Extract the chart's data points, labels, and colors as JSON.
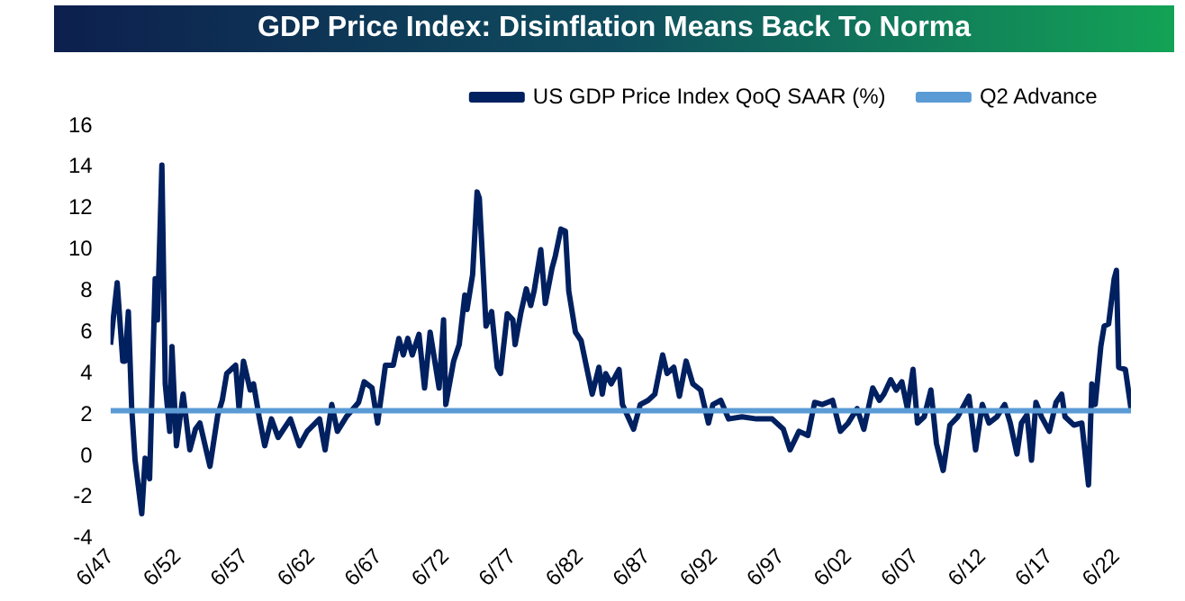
{
  "chart_data": {
    "type": "line",
    "title": "GDP Price Index: Disinflation Means Back To Norma",
    "series": [
      {
        "name": "US GDP Price Index QoQ SAAR (%)",
        "color": "#002060",
        "x": [
          "1947-06",
          "1947-12",
          "1948-05",
          "1948-07",
          "1948-10",
          "1949-01",
          "1949-04",
          "1949-10",
          "1950-01",
          "1950-05",
          "1950-10",
          "1950-12",
          "1951-04",
          "1951-07",
          "1951-11",
          "1952-01",
          "1952-05",
          "1952-11",
          "1953-05",
          "1953-10",
          "1954-02",
          "1954-11",
          "1955-06",
          "1955-10",
          "1956-02",
          "1956-10",
          "1957-01",
          "1957-05",
          "1957-11",
          "1958-02",
          "1958-07",
          "1958-12",
          "1959-06",
          "1959-12",
          "1960-11",
          "1961-07",
          "1962-02",
          "1963-01",
          "1963-06",
          "1963-12",
          "1964-05",
          "1965-01",
          "1965-12",
          "1966-05",
          "1966-12",
          "1967-05",
          "1967-12",
          "1968-07",
          "1968-12",
          "1969-04",
          "1969-08",
          "1969-12",
          "1970-06",
          "1970-11",
          "1971-04",
          "1971-12",
          "1972-04",
          "1972-06",
          "1973-01",
          "1973-06",
          "1973-11",
          "1974-01",
          "1974-06",
          "1974-10",
          "1974-12",
          "1975-06",
          "1975-11",
          "1976-04",
          "1976-07",
          "1977-01",
          "1977-06",
          "1977-08",
          "1978-01",
          "1978-06",
          "1978-10",
          "1979-01",
          "1979-07",
          "1979-11",
          "1980-05",
          "1980-08",
          "1981-01",
          "1981-05",
          "1981-08",
          "1982-02",
          "1982-07",
          "1982-12",
          "1983-05",
          "1983-11",
          "1984-02",
          "1984-05",
          "1984-10",
          "1985-05",
          "1985-08",
          "1986-01",
          "1986-06",
          "1986-12",
          "1987-07",
          "1988-01",
          "1988-08",
          "1988-12",
          "1989-06",
          "1989-11",
          "1990-05",
          "1990-11",
          "1991-06",
          "1992-01",
          "1992-05",
          "1992-12",
          "1993-07",
          "1994-07",
          "1995-08",
          "1996-10",
          "1997-08",
          "1998-02",
          "1998-10",
          "1999-06",
          "1999-12",
          "2000-07",
          "2001-04",
          "2001-11",
          "2002-06",
          "2003-02",
          "2003-08",
          "2004-04",
          "2004-10",
          "2005-02",
          "2005-08",
          "2006-01",
          "2006-06",
          "2006-11",
          "2007-04",
          "2007-08",
          "2008-02",
          "2008-08",
          "2009-01",
          "2009-07",
          "2010-01",
          "2010-08",
          "2011-06",
          "2011-12",
          "2012-06",
          "2012-12",
          "2013-07",
          "2014-02",
          "2014-07",
          "2015-01",
          "2015-05",
          "2015-10",
          "2016-02",
          "2016-06",
          "2016-11",
          "2017-06",
          "2017-12",
          "2018-05",
          "2018-08",
          "2019-04",
          "2019-11",
          "2020-05",
          "2020-08",
          "2020-11",
          "2021-04",
          "2021-07",
          "2021-11",
          "2022-04",
          "2022-06",
          "2022-08",
          "2023-02",
          "2023-07"
        ],
        "values": [
          5.4,
          8.4,
          4.6,
          4.6,
          7.0,
          2.3,
          -0.2,
          -2.8,
          -0.1,
          -1.1,
          8.6,
          6.6,
          14.1,
          3.5,
          1.2,
          5.3,
          0.5,
          3.0,
          0.3,
          1.3,
          1.6,
          -0.5,
          2.0,
          2.7,
          4.0,
          4.4,
          2.3,
          4.6,
          3.2,
          3.5,
          1.9,
          0.5,
          1.8,
          0.9,
          1.8,
          0.5,
          1.2,
          1.8,
          0.3,
          2.5,
          1.2,
          1.9,
          2.6,
          3.6,
          3.3,
          1.6,
          4.4,
          4.4,
          5.7,
          4.9,
          5.7,
          4.9,
          5.9,
          3.3,
          6.0,
          3.3,
          6.6,
          2.5,
          4.6,
          5.4,
          7.8,
          7.1,
          8.8,
          12.8,
          12.5,
          6.3,
          7.0,
          4.3,
          4.0,
          6.9,
          6.6,
          5.4,
          6.9,
          8.1,
          7.3,
          8.0,
          10.0,
          7.4,
          9.1,
          9.7,
          11.0,
          10.9,
          8.0,
          6.0,
          5.6,
          4.3,
          3.0,
          4.3,
          3.0,
          4.0,
          3.5,
          4.2,
          2.5,
          1.9,
          1.3,
          2.5,
          2.7,
          3.0,
          4.9,
          4.0,
          4.3,
          2.9,
          4.6,
          3.5,
          3.2,
          1.6,
          2.5,
          2.7,
          1.8,
          1.9,
          1.8,
          1.8,
          1.3,
          0.3,
          1.2,
          1.0,
          2.6,
          2.5,
          2.7,
          1.2,
          1.6,
          2.3,
          1.3,
          3.3,
          2.7,
          3.0,
          3.7,
          3.2,
          3.6,
          2.3,
          4.2,
          1.6,
          1.9,
          3.2,
          0.6,
          -0.7,
          1.5,
          1.9,
          2.9,
          0.3,
          2.5,
          1.6,
          1.9,
          2.5,
          1.6,
          0.1,
          1.6,
          2.0,
          -0.2,
          2.6,
          1.9,
          1.2,
          2.6,
          3.0,
          1.9,
          1.5,
          1.6,
          -1.4,
          3.5,
          2.5,
          5.3,
          6.3,
          6.4,
          8.6,
          9.0,
          4.3,
          4.2,
          2.3
        ]
      },
      {
        "name": "Q2 Advance",
        "color": "#5b9bd5",
        "x": [
          "1947-06",
          "2023-07"
        ],
        "values": [
          2.2,
          2.2
        ]
      }
    ],
    "xlim": [
      "1947-06",
      "2023-07"
    ],
    "xticks": [
      {
        "value": "1947-06",
        "label": "6/47"
      },
      {
        "value": "1952-06",
        "label": "6/52"
      },
      {
        "value": "1957-06",
        "label": "6/57"
      },
      {
        "value": "1962-06",
        "label": "6/62"
      },
      {
        "value": "1967-06",
        "label": "6/67"
      },
      {
        "value": "1972-06",
        "label": "6/72"
      },
      {
        "value": "1977-06",
        "label": "6/77"
      },
      {
        "value": "1982-06",
        "label": "6/82"
      },
      {
        "value": "1987-06",
        "label": "6/87"
      },
      {
        "value": "1992-06",
        "label": "6/92"
      },
      {
        "value": "1997-06",
        "label": "6/97"
      },
      {
        "value": "2002-06",
        "label": "6/02"
      },
      {
        "value": "2007-06",
        "label": "6/07"
      },
      {
        "value": "2012-06",
        "label": "6/12"
      },
      {
        "value": "2017-06",
        "label": "6/17"
      },
      {
        "value": "2022-06",
        "label": "6/22"
      }
    ],
    "ylim": [
      -4,
      16
    ],
    "yticks": [
      -4,
      -2,
      0,
      2,
      4,
      6,
      8,
      10,
      12,
      14,
      16
    ],
    "grid": false,
    "legend": "top right",
    "marker": "none",
    "line_style": "solid"
  }
}
